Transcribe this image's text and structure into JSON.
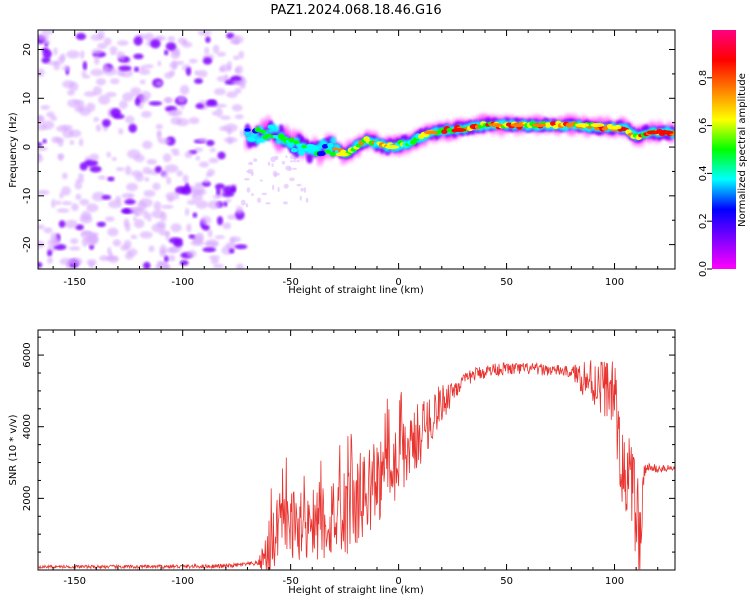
{
  "title": "PAZ1.2024.068.18.46.G16",
  "chart_data": [
    {
      "type": "heatmap",
      "title": "PAZ1.2024.068.18.46.G16",
      "xlabel": "Height of straight line (km)",
      "ylabel": "Frequency (Hz)",
      "xlim": [
        -167,
        128
      ],
      "ylim": [
        -25,
        24
      ],
      "xticks": [
        -150,
        -100,
        -50,
        0,
        50,
        100
      ],
      "yticks": [
        -20,
        -10,
        0,
        10,
        20
      ],
      "colorbar": {
        "label": "Normalized spectral amplitude",
        "range": [
          0,
          1
        ],
        "ticks": [
          "0.0",
          "0.2",
          "0.4",
          "0.6",
          "0.8"
        ],
        "colormap": [
          "#ff00ff",
          "#7f00ff",
          "#0000ff",
          "#00ffff",
          "#00ff00",
          "#ffff00",
          "#ff8000",
          "#ff0000",
          "#ff0080"
        ]
      },
      "ridge": {
        "description_points": [
          {
            "x": -70,
            "y": 2
          },
          {
            "x": -60,
            "y": 3
          },
          {
            "x": -50,
            "y": 1
          },
          {
            "x": -40,
            "y": -1
          },
          {
            "x": -30,
            "y": 0
          },
          {
            "x": -25,
            "y": -1.5
          },
          {
            "x": -15,
            "y": 1.5
          },
          {
            "x": -5,
            "y": 0
          },
          {
            "x": 5,
            "y": 1
          },
          {
            "x": 15,
            "y": 3
          },
          {
            "x": 25,
            "y": 3.5
          },
          {
            "x": 40,
            "y": 4.5
          },
          {
            "x": 60,
            "y": 4.5
          },
          {
            "x": 80,
            "y": 4.5
          },
          {
            "x": 95,
            "y": 4
          },
          {
            "x": 105,
            "y": 4
          },
          {
            "x": 110,
            "y": 2
          },
          {
            "x": 115,
            "y": 3
          },
          {
            "x": 128,
            "y": 3
          }
        ]
      }
    },
    {
      "type": "line",
      "xlabel": "Height of straight line (km)",
      "ylabel": "SNR (10 * v/v)",
      "xlim": [
        -167,
        128
      ],
      "ylim": [
        0,
        6700
      ],
      "xticks": [
        -150,
        -100,
        -50,
        0,
        50,
        100
      ],
      "yticks": [
        2000,
        4000,
        6000
      ],
      "color": "#e8332f",
      "envelope": [
        {
          "x": -167,
          "y": 100
        },
        {
          "x": -120,
          "y": 100
        },
        {
          "x": -80,
          "y": 120
        },
        {
          "x": -65,
          "y": 200
        },
        {
          "x": -60,
          "y": 700
        },
        {
          "x": -55,
          "y": 1400
        },
        {
          "x": -45,
          "y": 1500
        },
        {
          "x": -35,
          "y": 1600
        },
        {
          "x": -25,
          "y": 1900
        },
        {
          "x": -15,
          "y": 2400
        },
        {
          "x": -5,
          "y": 3000
        },
        {
          "x": 5,
          "y": 3600
        },
        {
          "x": 15,
          "y": 4400
        },
        {
          "x": 25,
          "y": 5100
        },
        {
          "x": 35,
          "y": 5500
        },
        {
          "x": 45,
          "y": 5650
        },
        {
          "x": 60,
          "y": 5650
        },
        {
          "x": 75,
          "y": 5600
        },
        {
          "x": 85,
          "y": 5500
        },
        {
          "x": 90,
          "y": 5400
        },
        {
          "x": 95,
          "y": 5300
        },
        {
          "x": 100,
          "y": 5100
        },
        {
          "x": 103,
          "y": 3000
        },
        {
          "x": 107,
          "y": 2800
        },
        {
          "x": 110,
          "y": 2000
        },
        {
          "x": 112,
          "y": 600
        },
        {
          "x": 114,
          "y": 2900
        },
        {
          "x": 120,
          "y": 2850
        },
        {
          "x": 128,
          "y": 2850
        }
      ],
      "noise_amplitude": [
        {
          "x": -167,
          "y": 40
        },
        {
          "x": -65,
          "y": 60
        },
        {
          "x": -60,
          "y": 900
        },
        {
          "x": -20,
          "y": 1300
        },
        {
          "x": 10,
          "y": 900
        },
        {
          "x": 30,
          "y": 200
        },
        {
          "x": 80,
          "y": 150
        },
        {
          "x": 88,
          "y": 700
        },
        {
          "x": 100,
          "y": 900
        },
        {
          "x": 112,
          "y": 1500
        },
        {
          "x": 115,
          "y": 120
        },
        {
          "x": 128,
          "y": 100
        }
      ]
    }
  ]
}
